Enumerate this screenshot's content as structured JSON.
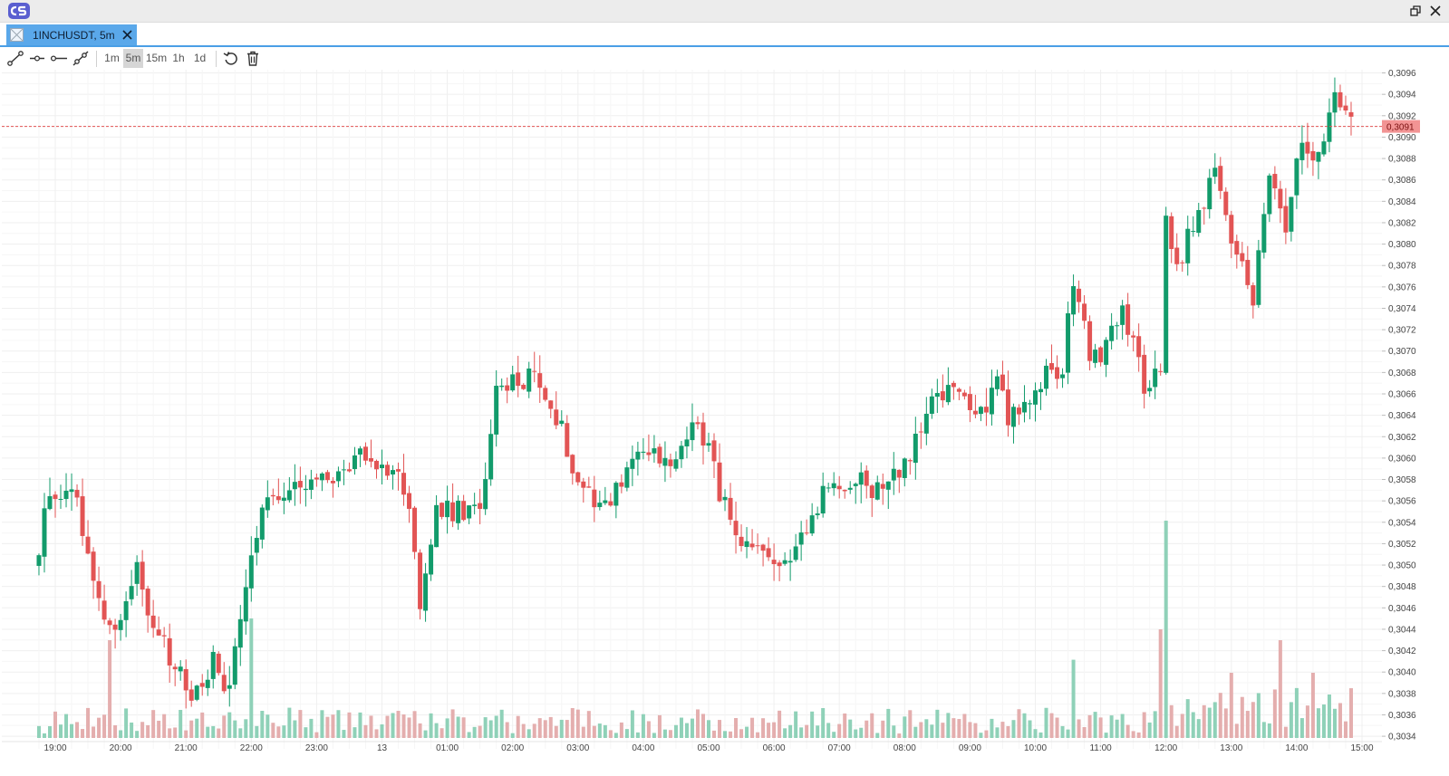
{
  "window": {
    "logo_icon": "app-logo-icon",
    "restore_icon": "window-restore-icon",
    "close_icon": "window-close-icon"
  },
  "tab": {
    "label": "1INCHUSDT, 5m",
    "icon": "chart-placeholder-icon",
    "close_icon": "close-icon"
  },
  "toolbar": {
    "tools": [
      {
        "icon": "trend-line-icon"
      },
      {
        "icon": "horizontal-ray-icon"
      },
      {
        "icon": "ray-icon"
      },
      {
        "icon": "extended-line-icon"
      }
    ],
    "timeframes": [
      "1m",
      "5m",
      "15m",
      "1h",
      "1d"
    ],
    "active_timeframe": "5m",
    "reset_icon": "reset-icon",
    "delete_icon": "trash-icon"
  },
  "colors": {
    "up": "#129b6b",
    "down": "#e25454",
    "up_volume": "#8fd1b8",
    "down_volume": "#e4aeae",
    "last_price_line": "#e25454",
    "last_price_badge": "#f29494",
    "grid": "#efefef",
    "tab_active": "#5aa8ea"
  },
  "chart_data": {
    "type": "candlestick",
    "symbol": "1INCHUSDT",
    "interval": "5m",
    "ylim": [
      0.30335,
      0.30963
    ],
    "y_ticks": [
      "0,3034",
      "0,3036",
      "0,3038",
      "0,3040",
      "0,3042",
      "0,3044",
      "0,3046",
      "0,3048",
      "0,3050",
      "0,3052",
      "0,3054",
      "0,3056",
      "0,3058",
      "0,3060",
      "0,3062",
      "0,3064",
      "0,3066",
      "0,3068",
      "0,3070",
      "0,3072",
      "0,3074",
      "0,3076",
      "0,3078",
      "0,3080",
      "0,3082",
      "0,3084",
      "0,3086",
      "0,3088",
      "0,3090",
      "0,3092",
      "0,3094",
      "0,3096"
    ],
    "x_ticks": [
      "19:00",
      "20:00",
      "21:00",
      "22:00",
      "23:00",
      "13",
      "01:00",
      "02:00",
      "03:00",
      "04:00",
      "05:00",
      "06:00",
      "07:00",
      "08:00",
      "09:00",
      "10:00",
      "11:00",
      "12:00",
      "13:00",
      "14:00",
      "15:00"
    ],
    "last_price": 0.3091,
    "last_price_label": "0,3091",
    "grid": true,
    "anchors": [
      {
        "t": "18:45",
        "close": 0.3052
      },
      {
        "t": "18:55",
        "close": 0.3057
      },
      {
        "t": "19:20",
        "close": 0.3056
      },
      {
        "t": "19:35",
        "close": 0.3048
      },
      {
        "t": "19:55",
        "close": 0.3044
      },
      {
        "t": "20:15",
        "close": 0.305
      },
      {
        "t": "20:25",
        "close": 0.3046
      },
      {
        "t": "20:45",
        "close": 0.3041
      },
      {
        "t": "21:05",
        "close": 0.3038
      },
      {
        "t": "21:25",
        "close": 0.3041
      },
      {
        "t": "21:40",
        "close": 0.3038
      },
      {
        "t": "21:55",
        "close": 0.3049
      },
      {
        "t": "22:15",
        "close": 0.3057
      },
      {
        "t": "22:45",
        "close": 0.3057
      },
      {
        "t": "23:15",
        "close": 0.3058
      },
      {
        "t": "23:35",
        "close": 0.306
      },
      {
        "t": "00:10",
        "close": 0.3059
      },
      {
        "t": "00:25",
        "close": 0.3056
      },
      {
        "t": "00:35",
        "close": 0.3046
      },
      {
        "t": "00:50",
        "close": 0.3055
      },
      {
        "t": "01:10",
        "close": 0.3055
      },
      {
        "t": "01:30",
        "close": 0.3055
      },
      {
        "t": "01:45",
        "close": 0.3066
      },
      {
        "t": "02:00",
        "close": 0.3067
      },
      {
        "t": "02:20",
        "close": 0.3068
      },
      {
        "t": "02:40",
        "close": 0.3064
      },
      {
        "t": "03:00",
        "close": 0.3058
      },
      {
        "t": "03:20",
        "close": 0.3056
      },
      {
        "t": "03:30",
        "close": 0.3056
      },
      {
        "t": "03:55",
        "close": 0.3061
      },
      {
        "t": "04:25",
        "close": 0.3059
      },
      {
        "t": "04:50",
        "close": 0.3064
      },
      {
        "t": "05:10",
        "close": 0.3057
      },
      {
        "t": "05:25",
        "close": 0.3052
      },
      {
        "t": "05:55",
        "close": 0.305
      },
      {
        "t": "06:25",
        "close": 0.3052
      },
      {
        "t": "06:45",
        "close": 0.3057
      },
      {
        "t": "07:10",
        "close": 0.3058
      },
      {
        "t": "07:35",
        "close": 0.3057
      },
      {
        "t": "08:05",
        "close": 0.306
      },
      {
        "t": "08:30",
        "close": 0.3066
      },
      {
        "t": "08:55",
        "close": 0.3066
      },
      {
        "t": "09:10",
        "close": 0.3064
      },
      {
        "t": "09:25",
        "close": 0.3068
      },
      {
        "t": "09:35",
        "close": 0.3064
      },
      {
        "t": "09:55",
        "close": 0.3065
      },
      {
        "t": "10:10",
        "close": 0.3068
      },
      {
        "t": "10:25",
        "close": 0.3068
      },
      {
        "t": "10:35",
        "close": 0.3077
      },
      {
        "t": "10:50",
        "close": 0.307
      },
      {
        "t": "11:05",
        "close": 0.307
      },
      {
        "t": "11:20",
        "close": 0.3074
      },
      {
        "t": "11:40",
        "close": 0.3067
      },
      {
        "t": "11:55",
        "close": 0.3068
      },
      {
        "t": "12:00",
        "close": 0.3082
      },
      {
        "t": "12:10",
        "close": 0.3078
      },
      {
        "t": "12:35",
        "close": 0.3084
      },
      {
        "t": "12:45",
        "close": 0.3087
      },
      {
        "t": "13:00",
        "close": 0.308
      },
      {
        "t": "13:20",
        "close": 0.3075
      },
      {
        "t": "13:35",
        "close": 0.3086
      },
      {
        "t": "13:50",
        "close": 0.3081
      },
      {
        "t": "14:05",
        "close": 0.309
      },
      {
        "t": "14:20",
        "close": 0.3088
      },
      {
        "t": "14:35",
        "close": 0.3095
      },
      {
        "t": "14:50",
        "close": 0.3091
      }
    ],
    "volume_spikes": [
      {
        "t": "19:50",
        "ratio": 0.45
      },
      {
        "t": "22:00",
        "ratio": 0.55
      },
      {
        "t": "10:35",
        "ratio": 0.36
      },
      {
        "t": "11:55",
        "ratio": 0.5
      },
      {
        "t": "12:00",
        "ratio": 1.0
      },
      {
        "t": "13:00",
        "ratio": 0.3
      },
      {
        "t": "13:45",
        "ratio": 0.45
      },
      {
        "t": "14:15",
        "ratio": 0.3
      }
    ]
  }
}
